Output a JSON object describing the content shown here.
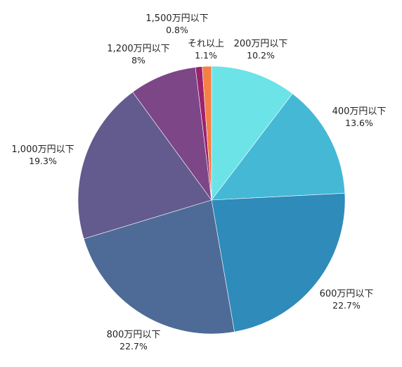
{
  "chart_data": {
    "type": "pie",
    "title": "",
    "start_angle_deg": 0,
    "direction": "clockwise",
    "slices": [
      {
        "label": "200万円以下",
        "value": 10.2,
        "value_label": "10.2%",
        "color": "#6be3e7"
      },
      {
        "label": "400万円以下",
        "value": 13.6,
        "value_label": "13.6%",
        "color": "#45b8d6"
      },
      {
        "label": "600万円以下",
        "value": 22.7,
        "value_label": "22.7%",
        "color": "#2e8bba"
      },
      {
        "label": "800万円以下",
        "value": 22.7,
        "value_label": "22.7%",
        "color": "#4d6b96"
      },
      {
        "label": "1,000万円以下",
        "value": 19.3,
        "value_label": "19.3%",
        "color": "#635a8e"
      },
      {
        "label": "1,200万円以下",
        "value": 8,
        "value_label": "8%",
        "color": "#7d4687"
      },
      {
        "label": "1,500万円以下",
        "value": 0.8,
        "value_label": "0.8%",
        "color": "#9b226e"
      },
      {
        "label": "それ以上",
        "value": 1.1,
        "value_label": "1.1%",
        "color": "#f58045"
      }
    ]
  }
}
